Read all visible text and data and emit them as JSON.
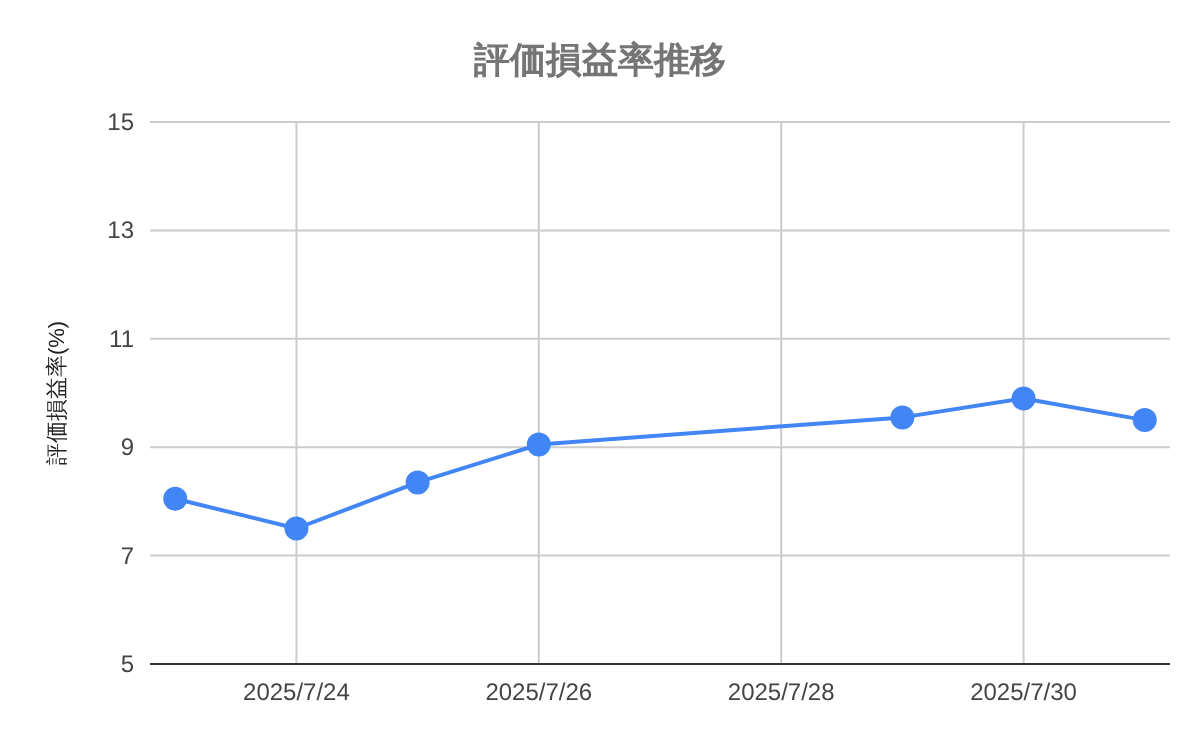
{
  "chart_data": {
    "type": "line",
    "title": "評価損益率推移",
    "ylabel": "評価損益率(%)",
    "x": [
      "2025-07-23",
      "2025-07-24",
      "2025-07-25",
      "2025-07-26",
      "2025-07-29",
      "2025-07-30",
      "2025-07-31"
    ],
    "series": [
      {
        "color": "#4285f4",
        "values": [
          8.05,
          7.5,
          8.35,
          9.05,
          9.55,
          9.9,
          9.5
        ]
      }
    ],
    "xlim": [
      "2025-07-22T19:00",
      "2025-07-31T05:00"
    ],
    "xticks": [
      {
        "value": "2025-07-24",
        "label": "2025/7/24"
      },
      {
        "value": "2025-07-26",
        "label": "2025/7/26"
      },
      {
        "value": "2025-07-28",
        "label": "2025/7/28"
      },
      {
        "value": "2025-07-30",
        "label": "2025/7/30"
      }
    ],
    "ylim": [
      5,
      15
    ],
    "yticks": [
      5,
      7,
      9,
      11,
      13,
      15
    ],
    "grid": true,
    "marker": "circle",
    "line_style": "solid"
  }
}
